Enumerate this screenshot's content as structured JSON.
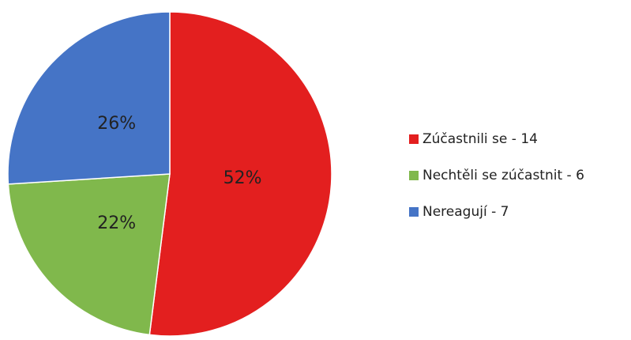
{
  "chart_data": {
    "type": "pie",
    "categories": [
      "Zúčastnili se - 14",
      "Nechtěli se zúčastnit - 6",
      "Nereagují - 7"
    ],
    "values": [
      52,
      22,
      26
    ],
    "value_labels": [
      "52%",
      "22%",
      "26%"
    ],
    "colors": [
      "#e31f1f",
      "#80b84c",
      "#4574c6"
    ],
    "legend": "right"
  }
}
